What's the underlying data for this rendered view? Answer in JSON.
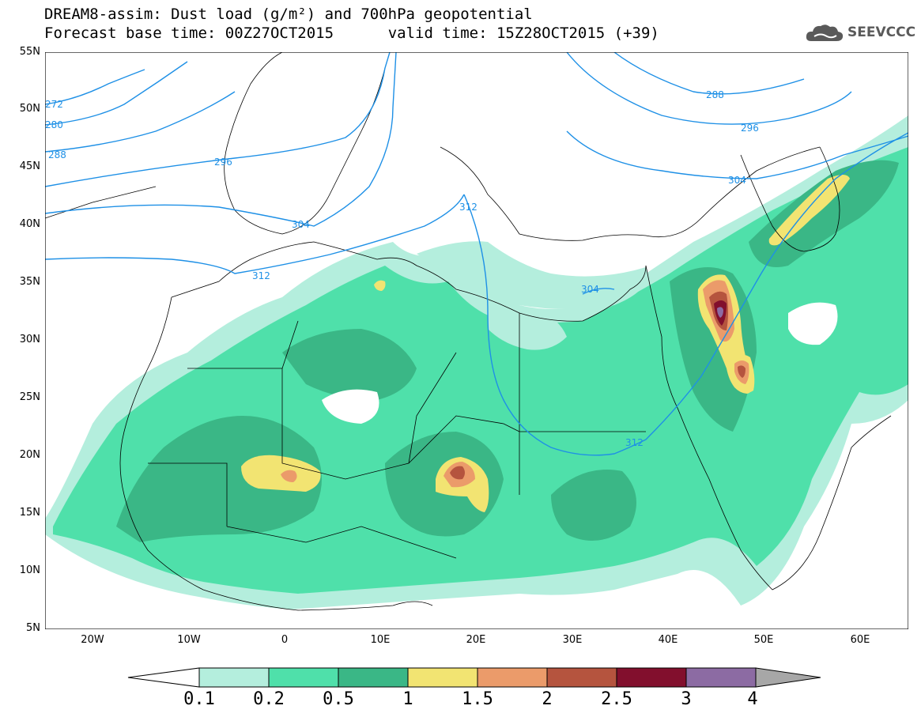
{
  "title": {
    "line1": "DREAM8-assim: Dust load (g/m²) and 700hPa geopotential",
    "line2_left": "Forecast base time: 00Z27OCT2015",
    "line2_right": "valid time: 15Z28OCT2015 (+39)"
  },
  "logo": {
    "text": "SEEVCCC",
    "icon": "cloud-icon"
  },
  "axes": {
    "lat_labels": [
      "55N",
      "50N",
      "45N",
      "40N",
      "35N",
      "30N",
      "25N",
      "20N",
      "15N",
      "10N",
      "5N"
    ],
    "lon_labels": [
      "20W",
      "10W",
      "0",
      "10E",
      "20E",
      "30E",
      "40E",
      "50E",
      "60E"
    ]
  },
  "contours": {
    "labels": [
      "272",
      "280",
      "288",
      "296",
      "304",
      "312",
      "304",
      "312",
      "288",
      "296",
      "304",
      "312"
    ]
  },
  "colorbar": {
    "ticks": [
      "0.1",
      "0.2",
      "0.5",
      "1",
      "1.5",
      "2",
      "2.5",
      "3",
      "4"
    ],
    "colors": [
      "#b4eedd",
      "#4fe0aa",
      "#3ab786",
      "#f2e472",
      "#eb9b6a",
      "#b5543e",
      "#820f2d",
      "#8c6ba3",
      "#a7a7a7"
    ]
  },
  "colors": {
    "contour": "#1e90e6",
    "background": "#ffffff",
    "dust_light": "#b4eedd",
    "dust_mid": "#4fe0aa",
    "dust_dark": "#3ab786",
    "dust_yellow": "#f2e472",
    "dust_orange": "#eb9b6a",
    "dust_red": "#b5543e",
    "dust_maroon": "#820f2d",
    "dust_purple": "#8c6ba3"
  }
}
